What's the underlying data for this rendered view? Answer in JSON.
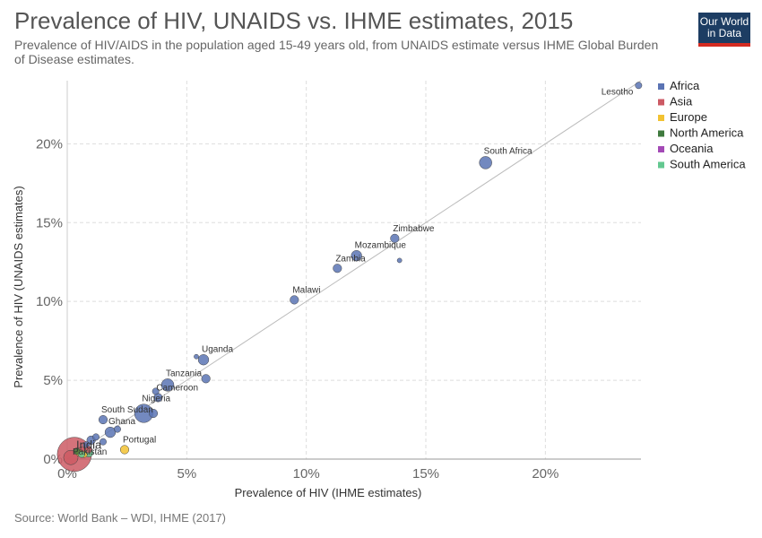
{
  "header": {
    "title": "Prevalence of HIV, UNAIDS vs. IHME estimates, 2015",
    "subtitle": "Prevalence of HIV/AIDS in the population aged 15-49 years old, from UNAIDS estimate versus IHME Global Burden of Disease estimates.",
    "logo_line1": "Our World",
    "logo_line2": "in Data"
  },
  "footer": {
    "source": "Source: World Bank – WDI, IHME (2017)"
  },
  "colors": {
    "Africa": "#5b74b4",
    "Asia": "#cc5a64",
    "Europe": "#f2c232",
    "North America": "#3f7a3e",
    "Oceania": "#a349b6",
    "South America": "#63c890"
  },
  "chart_data": {
    "type": "scatter",
    "title": "Prevalence of HIV, UNAIDS vs. IHME estimates, 2015",
    "xlabel": "Prevalence of HIV (IHME estimates)",
    "ylabel": "Prevalence of HIV (UNAIDS estimates)",
    "xlim": [
      0,
      24
    ],
    "ylim": [
      0,
      24
    ],
    "x_ticks": [
      0,
      5,
      10,
      15,
      20
    ],
    "y_ticks": [
      0,
      5,
      10,
      15,
      20
    ],
    "x_tick_labels": [
      "0%",
      "5%",
      "10%",
      "15%",
      "20%"
    ],
    "y_tick_labels": [
      "0%",
      "5%",
      "10%",
      "15%",
      "20%"
    ],
    "grid": true,
    "legend_position": "top-right",
    "legend": [
      "Africa",
      "Asia",
      "Europe",
      "North America",
      "Oceania",
      "South America"
    ],
    "points": [
      {
        "label": "Lesotho",
        "region": "Africa",
        "x": 23.9,
        "y": 23.7,
        "size": 2
      },
      {
        "label": "South Africa",
        "region": "Africa",
        "x": 17.5,
        "y": 18.8,
        "size": 5
      },
      {
        "label": "Zimbabwe",
        "region": "Africa",
        "x": 13.7,
        "y": 14.0,
        "size": 3
      },
      {
        "label": "Mozambique",
        "region": "Africa",
        "x": 12.1,
        "y": 12.9,
        "size": 4
      },
      {
        "label": "Zambia",
        "region": "Africa",
        "x": 11.3,
        "y": 12.1,
        "size": 3
      },
      {
        "label": "",
        "region": "Africa",
        "x": 13.9,
        "y": 12.6,
        "size": 1
      },
      {
        "label": "Malawi",
        "region": "Africa",
        "x": 9.5,
        "y": 10.1,
        "size": 3
      },
      {
        "label": "Uganda",
        "region": "Africa",
        "x": 5.7,
        "y": 6.3,
        "size": 4
      },
      {
        "label": "",
        "region": "Africa",
        "x": 5.4,
        "y": 6.5,
        "size": 1
      },
      {
        "label": "",
        "region": "Africa",
        "x": 5.8,
        "y": 5.1,
        "size": 3
      },
      {
        "label": "Tanzania",
        "region": "Africa",
        "x": 4.2,
        "y": 4.7,
        "size": 5
      },
      {
        "label": "Cameroon",
        "region": "Africa",
        "x": 3.8,
        "y": 3.9,
        "size": 3
      },
      {
        "label": "",
        "region": "Africa",
        "x": 3.7,
        "y": 4.3,
        "size": 2
      },
      {
        "label": "Nigeria",
        "region": "Africa",
        "x": 3.2,
        "y": 2.9,
        "size": 8
      },
      {
        "label": "",
        "region": "Africa",
        "x": 3.6,
        "y": 2.9,
        "size": 3
      },
      {
        "label": "South Sudan",
        "region": "Africa",
        "x": 1.5,
        "y": 2.5,
        "size": 3
      },
      {
        "label": "Ghana",
        "region": "Africa",
        "x": 1.8,
        "y": 1.7,
        "size": 4
      },
      {
        "label": "",
        "region": "Africa",
        "x": 2.1,
        "y": 1.9,
        "size": 2
      },
      {
        "label": "",
        "region": "Africa",
        "x": 1.2,
        "y": 1.4,
        "size": 2
      },
      {
        "label": "",
        "region": "Africa",
        "x": 1.0,
        "y": 1.2,
        "size": 3
      },
      {
        "label": "",
        "region": "Africa",
        "x": 1.5,
        "y": 1.1,
        "size": 2
      },
      {
        "label": "",
        "region": "Africa",
        "x": 0.8,
        "y": 0.9,
        "size": 2
      },
      {
        "label": "India",
        "region": "Asia",
        "x": 0.3,
        "y": 0.3,
        "size": 16
      },
      {
        "label": "Pakistan",
        "region": "Asia",
        "x": 0.15,
        "y": 0.1,
        "size": 6
      },
      {
        "label": "",
        "region": "Asia",
        "x": 0.6,
        "y": 0.5,
        "size": 3
      },
      {
        "label": "",
        "region": "Asia",
        "x": 0.9,
        "y": 0.6,
        "size": 2
      },
      {
        "label": "Portugal",
        "region": "Europe",
        "x": 2.4,
        "y": 0.6,
        "size": 3
      },
      {
        "label": "",
        "region": "Europe",
        "x": 0.5,
        "y": 0.4,
        "size": 2
      },
      {
        "label": "",
        "region": "Europe",
        "x": 0.7,
        "y": 0.3,
        "size": 2
      },
      {
        "label": "",
        "region": "North America",
        "x": 0.4,
        "y": 0.5,
        "size": 2
      },
      {
        "label": "",
        "region": "South America",
        "x": 0.9,
        "y": 0.4,
        "size": 3
      },
      {
        "label": "",
        "region": "South America",
        "x": 0.6,
        "y": 0.3,
        "size": 2
      }
    ],
    "reference_line": {
      "from": [
        0,
        0
      ],
      "to": [
        24,
        24
      ]
    }
  }
}
